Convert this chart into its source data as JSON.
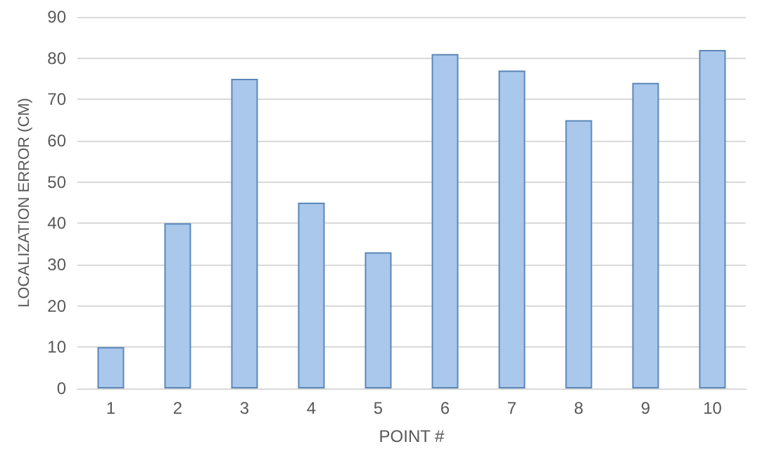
{
  "chart_data": {
    "type": "bar",
    "xlabel": "POINT #",
    "ylabel": "LOCALIZATION ERROR (CM)",
    "categories": [
      "1",
      "2",
      "3",
      "4",
      "5",
      "6",
      "7",
      "8",
      "9",
      "10"
    ],
    "values": [
      10,
      40,
      75,
      45,
      33,
      81,
      77,
      65,
      74,
      82
    ],
    "color": "#a9c8ec",
    "ylim": [
      0,
      90
    ],
    "yticks": [
      0,
      10,
      20,
      30,
      40,
      50,
      60,
      70,
      80,
      90
    ],
    "grid": "y"
  }
}
